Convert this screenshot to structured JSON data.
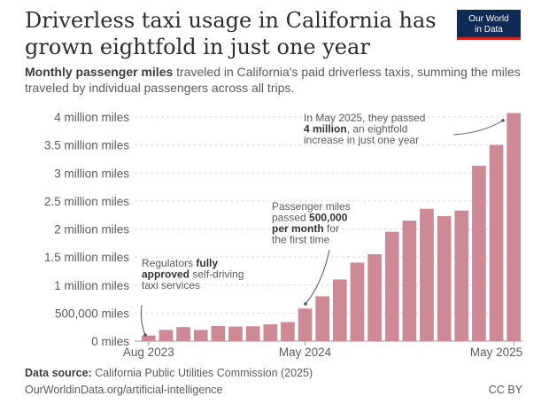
{
  "title": "Driverless taxi usage in California has grown eightfold in just one year",
  "logo": {
    "line1": "Our World",
    "line2": "in Data"
  },
  "subtitle": {
    "bold": "Monthly passenger miles",
    "rest": " traveled in California's paid driverless taxis, summing the miles traveled by individual passengers across all trips."
  },
  "chart_data": {
    "type": "bar",
    "title": "Driverless taxi usage in California has grown eightfold in just one year",
    "ylabel": "Monthly passenger miles",
    "ylim": [
      0,
      4000000
    ],
    "bar_color": "#cd8a96",
    "y_ticks": [
      {
        "value": 0,
        "label": "0 miles"
      },
      {
        "value": 500000,
        "label": "500,000 miles"
      },
      {
        "value": 1000000,
        "label": "1 million miles"
      },
      {
        "value": 1500000,
        "label": "1.5 million miles"
      },
      {
        "value": 2000000,
        "label": "2 million miles"
      },
      {
        "value": 2500000,
        "label": "2.5 million miles"
      },
      {
        "value": 3000000,
        "label": "3 million miles"
      },
      {
        "value": 3500000,
        "label": "3.5 million miles"
      },
      {
        "value": 4000000,
        "label": "4 million miles"
      }
    ],
    "x_tick_labels": [
      {
        "index": 0,
        "label": "Aug 2023"
      },
      {
        "index": 9,
        "label": "May 2024"
      },
      {
        "index": 21,
        "label": "May 2025"
      }
    ],
    "categories": [
      "Aug 2023",
      "Sep 2023",
      "Oct 2023",
      "Nov 2023",
      "Dec 2023",
      "Jan 2024",
      "Feb 2024",
      "Mar 2024",
      "Apr 2024",
      "May 2024",
      "Jun 2024",
      "Jul 2024",
      "Aug 2024",
      "Sep 2024",
      "Oct 2024",
      "Nov 2024",
      "Dec 2024",
      "Jan 2025",
      "Feb 2025",
      "Mar 2025",
      "Apr 2025",
      "May 2025"
    ],
    "values": [
      100000,
      200000,
      250000,
      200000,
      270000,
      260000,
      265000,
      300000,
      340000,
      580000,
      800000,
      1100000,
      1400000,
      1550000,
      1950000,
      2150000,
      2360000,
      2230000,
      2330000,
      3130000,
      3500000,
      4070000
    ],
    "annotations": [
      {
        "target_index": 0,
        "lines": [
          [
            "Regulators ",
            "fully"
          ],
          [
            "approved",
            " self-driving"
          ],
          [
            "taxi services"
          ]
        ]
      },
      {
        "target_index": 9,
        "lines": [
          [
            "Passenger miles"
          ],
          [
            "passed ",
            "500,000"
          ],
          [
            "per month",
            " for"
          ],
          [
            "the first time"
          ]
        ]
      },
      {
        "target_index": 21,
        "lines": [
          [
            "In May 2025, they passed"
          ],
          [
            "4 million",
            ", an eightfold"
          ],
          [
            "increase in just one year"
          ]
        ]
      }
    ]
  },
  "footer": {
    "source_label": "Data source:",
    "source_text": " California Public Utilities Commission (2025)",
    "url": "OurWorldinData.org/artificial-intelligence",
    "license": "CC BY"
  }
}
